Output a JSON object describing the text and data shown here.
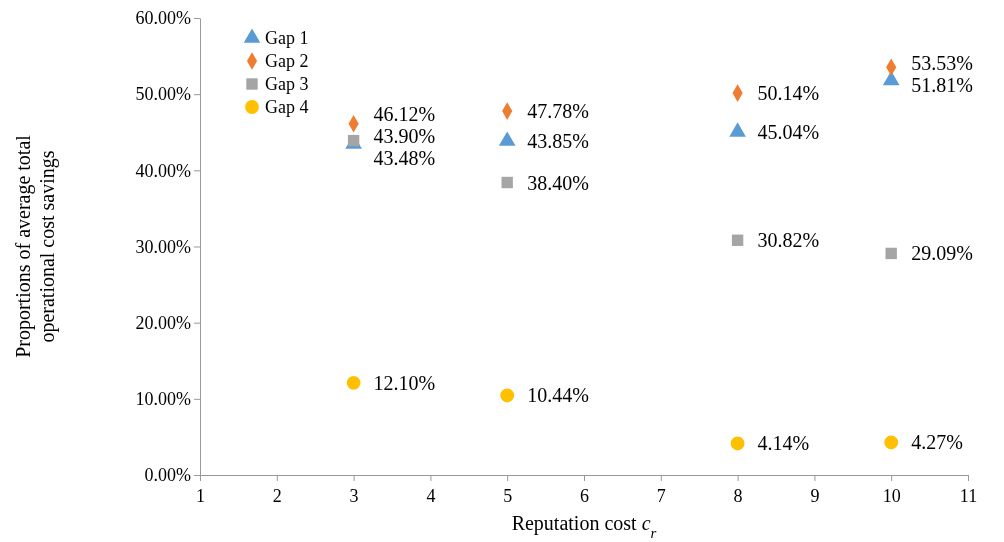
{
  "chart_data": {
    "type": "scatter",
    "xlabel": "Reputation cost c$_{r}$",
    "ylabel": "Proportions of average total operational cost savings",
    "x": [
      3,
      5,
      8,
      10
    ],
    "xlim": [
      1,
      11
    ],
    "xticks": [
      1,
      2,
      3,
      4,
      5,
      6,
      7,
      8,
      9,
      10,
      11
    ],
    "ylim": [
      0,
      60
    ],
    "yticks": [
      {
        "value": 0,
        "label": "0.00%"
      },
      {
        "value": 10,
        "label": "10.00%"
      },
      {
        "value": 20,
        "label": "20.00%"
      },
      {
        "value": 30,
        "label": "30.00%"
      },
      {
        "value": 40,
        "label": "40.00%"
      },
      {
        "value": 50,
        "label": "50.00%"
      },
      {
        "value": 60,
        "label": "60.00%"
      }
    ],
    "grid": false,
    "legend": "top left",
    "series": [
      {
        "name": "Gap 1",
        "color": "#5b9bd5",
        "marker": "triangle",
        "values": [
          43.48,
          43.85,
          45.04,
          51.81
        ],
        "value_labels": [
          "43.48%",
          "43.85%",
          "45.04%",
          "51.81%"
        ]
      },
      {
        "name": "Gap 2",
        "color": "#ed7d31",
        "marker": "diamond",
        "values": [
          46.12,
          47.78,
          50.14,
          53.53
        ],
        "value_labels": [
          "46.12%",
          "47.78%",
          "50.14%",
          "53.53%"
        ]
      },
      {
        "name": "Gap 3",
        "color": "#a5a5a5",
        "marker": "square",
        "values": [
          43.9,
          38.4,
          30.82,
          29.09
        ],
        "value_labels": [
          "43.90%",
          "38.40%",
          "30.82%",
          "29.09%"
        ]
      },
      {
        "name": "Gap 4",
        "color": "#ffc000",
        "marker": "circle",
        "values": [
          12.1,
          10.44,
          4.14,
          4.27
        ],
        "value_labels": [
          "12.10%",
          "10.44%",
          "4.14%",
          "4.27%"
        ]
      }
    ]
  }
}
